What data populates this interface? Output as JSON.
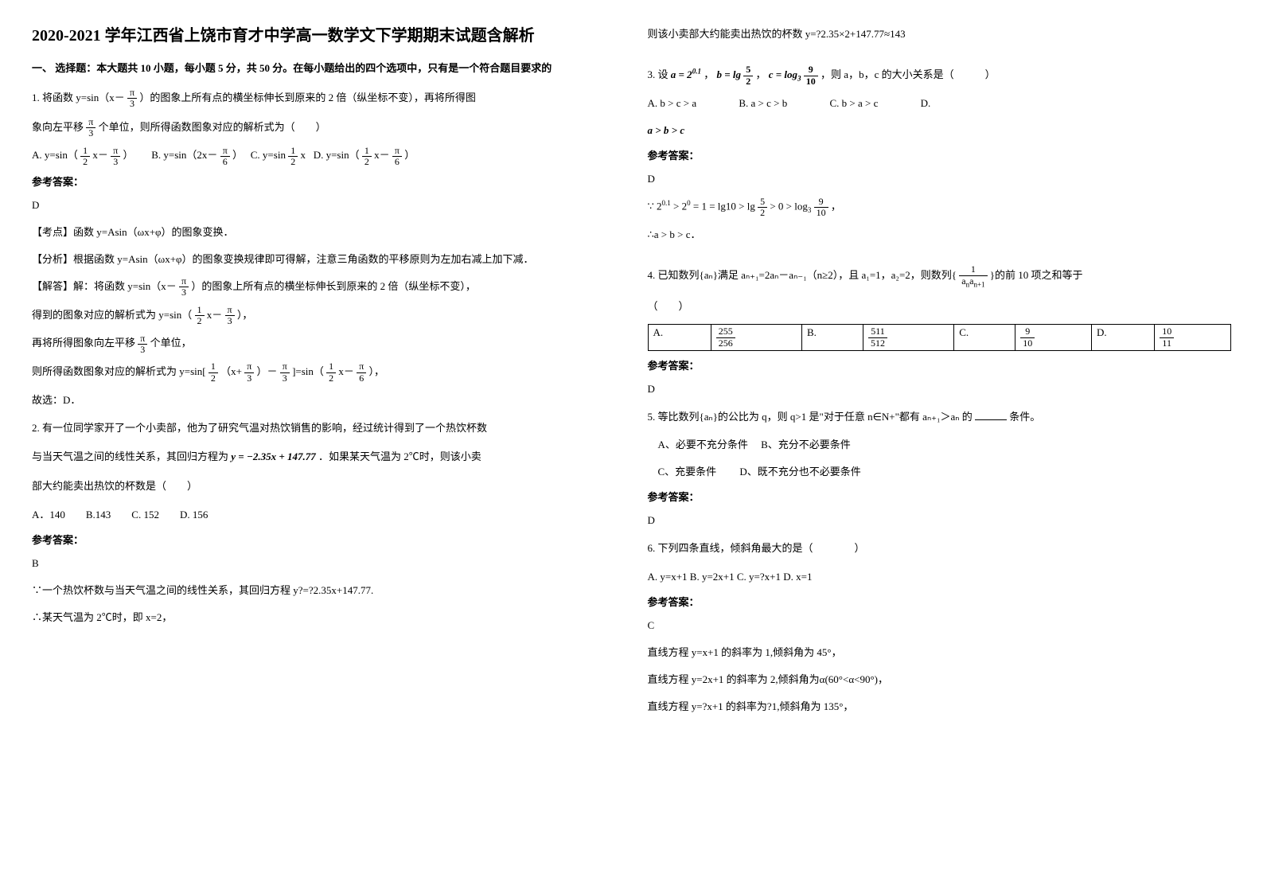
{
  "title": "2020-2021 学年江西省上饶市育才中学高一数学文下学期期末试题含解析",
  "section1_header": "一、 选择题：本大题共 10 小题，每小题 5 分，共 50 分。在每小题给出的四个选项中，只有是一个符合题目要求的",
  "q1": {
    "text_a": "1. 将函数 y=sin（x－",
    "text_b": "）的图象上所有点的横坐标伸长到原来的 2 倍（纵坐标不变），再将所得图",
    "text_c": "象向左平移",
    "text_d": "个单位，则所得函数图象对应的解析式为（　　）",
    "opt_a": "A. y=sin（",
    "opt_a2": "x－",
    "opt_a3": "）",
    "opt_b": "B. y=sin（2x－",
    "opt_b2": "）",
    "opt_c": "C. y=sin",
    "opt_c2": "x",
    "opt_d": "D. y=sin（",
    "opt_d2": "x－",
    "opt_d3": "）"
  },
  "answer_label": "参考答案：",
  "q1_answer": {
    "letter": "D",
    "point": "【考点】函数 y=Asin（ωx+φ）的图象变换．",
    "analysis": "【分析】根据函数 y=Asin（ωx+φ）的图象变换规律即可得解，注意三角函数的平移原则为左加右减上加下减．",
    "solve1": "【解答】解：将函数 y=sin（x－",
    "solve1b": "）的图象上所有点的横坐标伸长到原来的 2 倍（纵坐标不变），",
    "solve2": "得到的图象对应的解析式为 y=sin（",
    "solve2b": "x－",
    "solve2c": "），",
    "solve3": "再将所得图象向左平移",
    "solve3b": "个单位，",
    "solve4": "则所得函数图象对应的解析式为 y=sin[",
    "solve4b": "（x+",
    "solve4c": "）－",
    "solve4d": "]=sin（",
    "solve4e": "x－",
    "solve4f": "），",
    "solve5": "故选：D．"
  },
  "q2": {
    "text": "2. 有一位同学家开了一个小卖部，他为了研究气温对热饮销售的影响，经过统计得到了一个热饮杯数",
    "text2a": "与当天气温之间的线性关系，其回归方程为",
    "formula": "y = −2.35x + 147.77",
    "text2b": "．如果某天气温为 2℃时，则该小卖",
    "text3": "部大约能卖出热饮的杯数是（　　）",
    "opts": "A．140　　B.143　　C.  152　　D.  156"
  },
  "q2_answer": {
    "letter": "B",
    "line1": "∵一个热饮杯数与当天气温之间的线性关系，其回归方程 y?=?2.35x+147.77.",
    "line2": "∴某天气温为 2℃时，即 x=2，",
    "line3": "则该小卖部大约能卖出热饮的杯数 y=?2.35×2+147.77≈143"
  },
  "q3": {
    "text_a": "3. 设",
    "a_eq": "a = 2",
    "a_exp": "0.1",
    "comma1": "，",
    "b_eq": "b = lg",
    "comma2": "，",
    "c_eq": "c = log",
    "c_base": "3",
    "text_b": "，则 a，b，c 的大小关系是（　　　）",
    "opt_a": "A.  b > c > a",
    "opt_b": "B.  a > c > b",
    "opt_c": "C.  b > a > c",
    "opt_d": "D.",
    "opt_d2": "a > b > c"
  },
  "q3_answer": {
    "letter": "D",
    "line1a": "∵ 2",
    "line1a_exp": "0.1",
    "line1b": " > 2",
    "line1b_exp": "0",
    "line1c": " = 1 = lg10 > lg",
    "line1d": " > 0 > log",
    "line1d_base": "3",
    "line1e": "，",
    "line2": "∴a > b > c．"
  },
  "q4": {
    "text": "4. 已知数列{aₙ}满足 aₙ₊₁=2aₙ－aₙ₋₁（n≥2），且 a₁=1，a₂=2，则数列{",
    "text2": "}的前 10 项之和等于",
    "text3": "（　　）",
    "table": {
      "a_label": "A.",
      "a_num": "255",
      "a_den": "256",
      "b_label": "B.",
      "b_num": "511",
      "b_den": "512",
      "c_label": "C.",
      "c_num": "9",
      "c_den": "10",
      "d_label": "D.",
      "d_num": "10",
      "d_den": "11"
    }
  },
  "q4_answer": {
    "letter": "D"
  },
  "q5": {
    "text": "5. 等比数列{aₙ}的公比为 q，则 q>1 是\"对于任意 n∈N+\"都有 aₙ₊₁＞aₙ 的",
    "text2": "条件。",
    "opt_a": "A、必要不充分条件",
    "opt_b": "B、充分不必要条件",
    "opt_c": "C、充要条件",
    "opt_d": "D、既不充分也不必要条件"
  },
  "q5_answer": {
    "letter": "D"
  },
  "q6": {
    "text": "6. 下列四条直线，倾斜角最大的是（　　　　）",
    "opts": "A. y=x+1   B. y=2x+1   C. y=?x+1   D. x=1"
  },
  "q6_answer": {
    "letter": "C",
    "line1": "直线方程 y=x+1 的斜率为 1,倾斜角为 45°，",
    "line2": "直线方程 y=2x+1 的斜率为 2,倾斜角为α(60°<α<90°)，",
    "line3": "直线方程 y=?x+1 的斜率为?1,倾斜角为 135°，"
  },
  "frac_pi": "π",
  "frac_3": "3",
  "frac_6": "6",
  "frac_1": "1",
  "frac_2": "2",
  "frac_5": "5",
  "frac_9": "9",
  "frac_10": "10"
}
